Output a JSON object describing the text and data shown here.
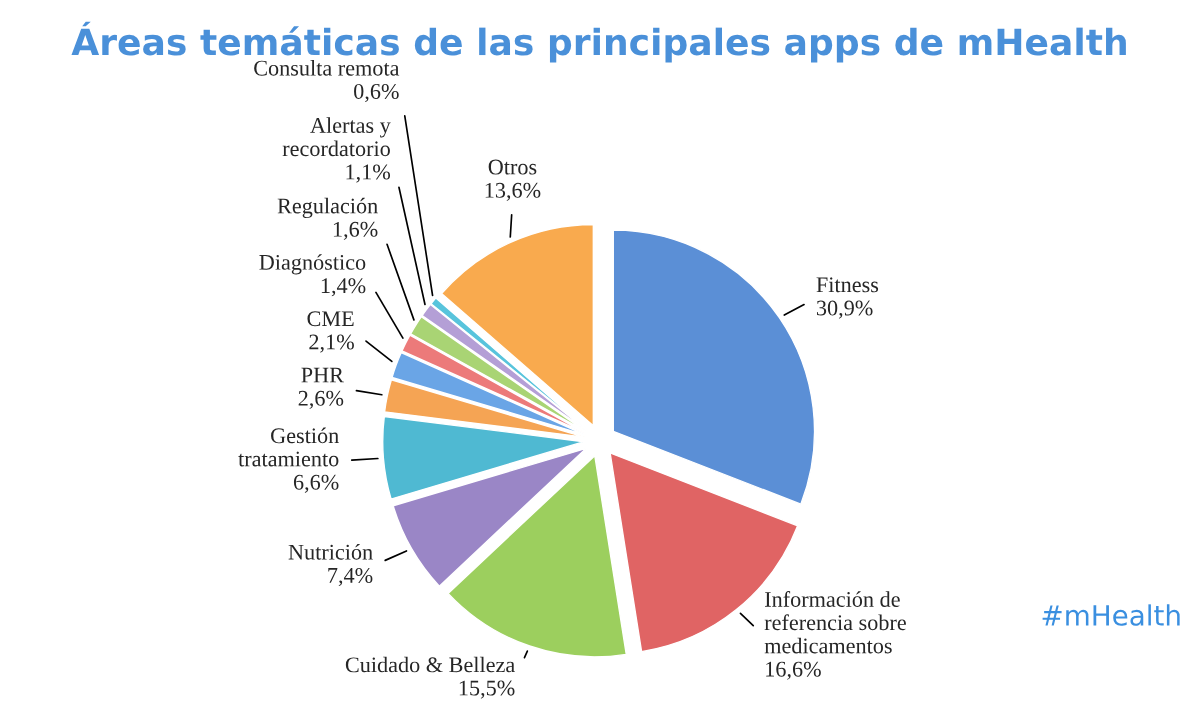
{
  "chart_data": {
    "type": "pie",
    "title": "Áreas temáticas de las principales apps de mHealth",
    "categories": [
      "Fitness",
      "Información de\nreferencia sobre\nmedicamentos",
      "Cuidado & Belleza",
      "Nutrición",
      "Gestión\ntratamiento",
      "PHR",
      "CME",
      "Diagnóstico",
      "Regulación",
      "Alertas y\nrecordatorio",
      "Consulta remota",
      "Otros"
    ],
    "values": [
      30.9,
      16.6,
      15.5,
      7.4,
      6.6,
      2.6,
      2.1,
      1.4,
      1.6,
      1.1,
      0.6,
      13.6
    ],
    "value_labels": [
      "30,9%",
      "16,6%",
      "15,5%",
      "7,4%",
      "6,6%",
      "2,6%",
      "2,1%",
      "1,4%",
      "1,6%",
      "1,1%",
      "0,6%",
      "13,6%"
    ],
    "colors": [
      "#5b8fd6",
      "#e06464",
      "#9ccf5e",
      "#9a86c6",
      "#4fb9d2",
      "#f5a454",
      "#6aa5e6",
      "#ec7a7a",
      "#a9d474",
      "#b49fd6",
      "#58c4dc",
      "#f9aa4e"
    ],
    "legend": false,
    "annotations": [
      "#mHealth"
    ]
  }
}
